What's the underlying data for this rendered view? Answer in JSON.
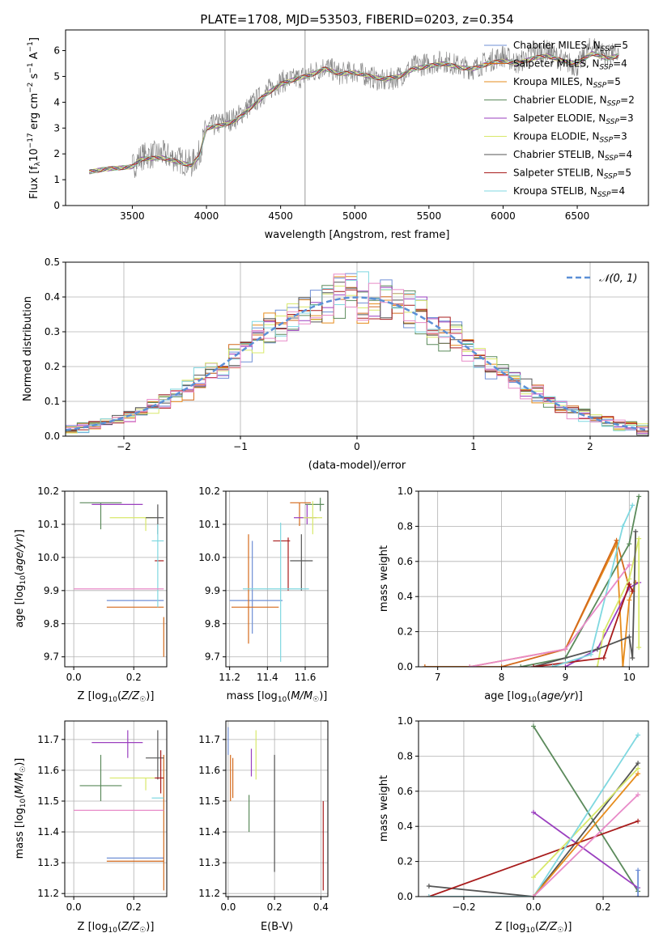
{
  "figure": {
    "title": "PLATE=1708, MJD=53503, FIBERID=0203, z=0.354"
  },
  "models": [
    {
      "name": "Chabrier MILES",
      "nssp": "5",
      "color": "#6f8fd6"
    },
    {
      "name": "Salpeter MILES",
      "nssp": "4",
      "color": "#d46a1c"
    },
    {
      "name": "Kroupa MILES",
      "nssp": "5",
      "color": "#e68c1c"
    },
    {
      "name": "Chabrier ELODIE",
      "nssp": "2",
      "color": "#5b8a5b"
    },
    {
      "name": "Salpeter ELODIE",
      "nssp": "3",
      "color": "#9a3fbf"
    },
    {
      "name": "Kroupa ELODIE",
      "nssp": "3",
      "color": "#d8e86a"
    },
    {
      "name": "Chabrier STELIB",
      "nssp": "4",
      "color": "#555555"
    },
    {
      "name": "Salpeter STELIB",
      "nssp": "5",
      "color": "#a81c1c"
    },
    {
      "name": "Kroupa STELIB",
      "nssp": "4",
      "color": "#7fd8e0"
    }
  ],
  "chart_data": [
    {
      "id": "spectrum",
      "type": "line",
      "xlabel": "wavelength [Angstrom, rest frame]",
      "ylabel": "Flux [f_λ 10^-17 erg cm^-2 s^-1 A^-1]",
      "xlim": [
        3050,
        6980
      ],
      "ylim": [
        0,
        6.8
      ],
      "xticks": [
        3500,
        4000,
        4500,
        5000,
        5500,
        6000,
        6500
      ],
      "yticks": [
        0,
        1,
        2,
        3,
        4,
        5,
        6
      ],
      "legend_position": "upper-right",
      "observed": {
        "x": [
          3210,
          3300,
          3400,
          3500,
          3560,
          3700,
          3800,
          3900,
          3950,
          4000,
          4100,
          4200,
          4300,
          4400,
          4500,
          4600,
          4700,
          4800,
          4900,
          5000,
          5100,
          5200,
          5300,
          5400,
          5500,
          5600,
          5700,
          5800,
          5900,
          6000,
          6100,
          6200,
          6300,
          6400,
          6500,
          6600,
          6700,
          6780
        ],
        "y": [
          1.3,
          1.4,
          1.45,
          1.5,
          1.9,
          2.0,
          1.8,
          1.6,
          2.0,
          3.0,
          3.2,
          3.4,
          3.9,
          4.4,
          4.8,
          4.9,
          5.1,
          5.4,
          5.1,
          5.2,
          5.0,
          4.8,
          5.0,
          5.4,
          5.5,
          5.6,
          5.4,
          5.3,
          5.6,
          5.8,
          5.5,
          5.9,
          6.0,
          5.6,
          5.4,
          6.2,
          5.8,
          5.9
        ]
      },
      "model": {
        "x": [
          3210,
          3300,
          3400,
          3500,
          3560,
          3700,
          3800,
          3900,
          3950,
          4000,
          4100,
          4200,
          4300,
          4400,
          4500,
          4600,
          4700,
          4800,
          4900,
          5000,
          5100,
          5200,
          5300,
          5400,
          5500,
          5600,
          5700,
          5800,
          5900,
          6000,
          6100,
          6200,
          6300,
          6400,
          6500,
          6600,
          6700,
          6780
        ],
        "y": [
          1.3,
          1.4,
          1.45,
          1.5,
          1.8,
          1.85,
          1.7,
          1.55,
          1.9,
          3.0,
          3.1,
          3.3,
          3.8,
          4.3,
          4.7,
          4.9,
          5.05,
          5.3,
          5.1,
          5.15,
          5.0,
          4.9,
          5.0,
          5.3,
          5.4,
          5.5,
          5.35,
          5.3,
          5.5,
          5.6,
          5.5,
          5.7,
          5.8,
          5.6,
          5.5,
          5.9,
          5.7,
          5.8
        ]
      }
    },
    {
      "id": "residuals",
      "type": "step",
      "xlabel": "(data-model)/error",
      "ylabel": "Normed distribution",
      "xlim": [
        -2.5,
        2.5
      ],
      "ylim": [
        0,
        0.5
      ],
      "xticks": [
        -2,
        -1,
        0,
        1,
        2
      ],
      "yticks": [
        0.0,
        0.1,
        0.2,
        0.3,
        0.4,
        0.5
      ],
      "legend": "𝒩(0, 1)",
      "reference_curve": "normal(0,1)",
      "bin_width": 0.1
    },
    {
      "id": "age-vs-Z",
      "type": "errorbar",
      "xlabel": "Z [log10(Z/Z☉)]",
      "ylabel": "age  [log10(age/yr)]",
      "xlim": [
        -0.03,
        0.31
      ],
      "ylim": [
        9.67,
        10.2
      ],
      "xticks": [
        0.0,
        0.2
      ],
      "yticks": [
        9.7,
        9.8,
        9.9,
        10.0,
        10.1,
        10.2
      ],
      "points": [
        {
          "x": 0.2,
          "xerr": [
            0.09,
            0.1
          ],
          "y": 9.87,
          "yerr": [
            0.0,
            0.0
          ]
        },
        {
          "x": 0.2,
          "xerr": [
            0.09,
            0.1
          ],
          "y": 9.85,
          "yerr": [
            0.0,
            0.0
          ]
        },
        {
          "x": 0.3,
          "xerr": [
            0.0,
            0.0
          ],
          "y": 9.8,
          "yerr": [
            0.1,
            0.02
          ]
        },
        {
          "x": 0.09,
          "xerr": [
            0.07,
            0.07
          ],
          "y": 10.165,
          "yerr": [
            0.08,
            0.0
          ]
        },
        {
          "x": 0.18,
          "xerr": [
            0.12,
            0.05
          ],
          "y": 10.16,
          "yerr": [
            0.0,
            0.0
          ]
        },
        {
          "x": 0.24,
          "xerr": [
            0.12,
            0.03
          ],
          "y": 10.12,
          "yerr": [
            0.04,
            0.0
          ]
        },
        {
          "x": 0.28,
          "xerr": [
            0.04,
            0.02
          ],
          "y": 10.12,
          "yerr": [
            0.05,
            0.04
          ]
        },
        {
          "x": 0.29,
          "xerr": [
            0.02,
            0.01
          ],
          "y": 9.99,
          "yerr": [
            0.0,
            0.0
          ]
        },
        {
          "x": 0.28,
          "xerr": [
            0.02,
            0.02
          ],
          "y": 10.05,
          "yerr": [
            0.2,
            0.05
          ]
        },
        {
          "x": 0.15,
          "xerr": [
            0.15,
            0.15
          ],
          "y": 9.905,
          "yerr": [
            0.0,
            0.0
          ]
        }
      ]
    },
    {
      "id": "age-vs-mass",
      "type": "errorbar",
      "xlabel": "mass [log10(M/M☉)]",
      "ylabel": "",
      "xlim": [
        11.18,
        11.72
      ],
      "ylim": [
        9.67,
        10.2
      ],
      "xticks": [
        11.2,
        11.4,
        11.6
      ],
      "yticks": [
        9.7,
        9.8,
        9.9,
        10.0,
        10.1,
        10.2
      ],
      "points": [
        {
          "x": 11.32,
          "xerr": [
            0.12,
            0.16
          ],
          "y": 9.87,
          "yerr": [
            0.1,
            0.18
          ]
        },
        {
          "x": 11.3,
          "xerr": [
            0.09,
            0.16
          ],
          "y": 9.85,
          "yerr": [
            0.11,
            0.22
          ]
        },
        {
          "x": 11.57,
          "xerr": [
            0.05,
            0.06
          ],
          "y": 10.165,
          "yerr": [
            0.07,
            0.0
          ]
        },
        {
          "x": 11.68,
          "xerr": [
            0.08,
            0.02
          ],
          "y": 10.16,
          "yerr": [
            0.02,
            0.02
          ]
        },
        {
          "x": 11.61,
          "xerr": [
            0.07,
            0.05
          ],
          "y": 10.12,
          "yerr": [
            0.02,
            0.04
          ]
        },
        {
          "x": 11.64,
          "xerr": [
            0.05,
            0.05
          ],
          "y": 10.12,
          "yerr": [
            0.05,
            0.05
          ]
        },
        {
          "x": 11.58,
          "xerr": [
            0.06,
            0.06
          ],
          "y": 9.99,
          "yerr": [
            0.09,
            0.08
          ]
        },
        {
          "x": 11.51,
          "xerr": [
            0.08,
            0.01
          ],
          "y": 10.05,
          "yerr": [
            0.15,
            0.01
          ]
        },
        {
          "x": 11.47,
          "xerr": [
            0.2,
            0.15
          ],
          "y": 9.905,
          "yerr": [
            0.22,
            0.2
          ]
        }
      ]
    },
    {
      "id": "weight-vs-age",
      "type": "line",
      "xlabel": "age  [log10(age/yr)]",
      "ylabel": "mass weight",
      "xlim": [
        6.7,
        10.3
      ],
      "ylim": [
        0,
        1
      ],
      "xticks": [
        7,
        8,
        9,
        10
      ],
      "yticks": [
        0.0,
        0.2,
        0.4,
        0.6,
        0.8,
        1.0
      ]
    },
    {
      "id": "mass-vs-Z",
      "type": "errorbar",
      "xlabel": "Z [log10(Z/Z☉)]",
      "ylabel": "mass [log10(M/M☉)]",
      "xlim": [
        -0.03,
        0.31
      ],
      "ylim": [
        11.19,
        11.76
      ],
      "xticks": [
        0.0,
        0.2
      ],
      "yticks": [
        11.2,
        11.3,
        11.4,
        11.5,
        11.6,
        11.7
      ],
      "points": [
        {
          "x": 0.2,
          "xerr": [
            0.09,
            0.1
          ],
          "y": 11.315,
          "yerr": [
            0.0,
            0.0
          ]
        },
        {
          "x": 0.2,
          "xerr": [
            0.09,
            0.1
          ],
          "y": 11.305,
          "yerr": [
            0.0,
            0.0
          ]
        },
        {
          "x": 0.3,
          "xerr": [
            0.0,
            0.0
          ],
          "y": 11.4,
          "yerr": [
            0.19,
            0.25
          ]
        },
        {
          "x": 0.09,
          "xerr": [
            0.07,
            0.07
          ],
          "y": 11.55,
          "yerr": [
            0.05,
            0.1
          ]
        },
        {
          "x": 0.18,
          "xerr": [
            0.12,
            0.05
          ],
          "y": 11.69,
          "yerr": [
            0.05,
            0.04
          ]
        },
        {
          "x": 0.24,
          "xerr": [
            0.12,
            0.03
          ],
          "y": 11.575,
          "yerr": [
            0.04,
            0.0
          ]
        },
        {
          "x": 0.28,
          "xerr": [
            0.04,
            0.02
          ],
          "y": 11.64,
          "yerr": [
            0.07,
            0.09
          ]
        },
        {
          "x": 0.29,
          "xerr": [
            0.02,
            0.01
          ],
          "y": 11.575,
          "yerr": [
            0.05,
            0.09
          ]
        },
        {
          "x": 0.28,
          "xerr": [
            0.02,
            0.02
          ],
          "y": 11.51,
          "yerr": [
            0.0,
            0.0
          ]
        },
        {
          "x": 0.15,
          "xerr": [
            0.15,
            0.15
          ],
          "y": 11.47,
          "yerr": [
            0.0,
            0.0
          ]
        }
      ]
    },
    {
      "id": "mass-vs-ebv",
      "type": "errorbar",
      "xlabel": "E(B-V)",
      "ylabel": "",
      "xlim": [
        -0.01,
        0.43
      ],
      "ylim": [
        11.19,
        11.76
      ],
      "xticks": [
        0.0,
        0.2,
        0.4
      ],
      "yticks": [
        11.2,
        11.3,
        11.4,
        11.5,
        11.6,
        11.7
      ],
      "points": [
        {
          "x": 0.0,
          "y": 11.7,
          "yerr": [
            0.05,
            0.04
          ]
        },
        {
          "x": 0.01,
          "y": 11.58,
          "yerr": [
            0.08,
            0.07
          ]
        },
        {
          "x": 0.02,
          "y": 11.58,
          "yerr": [
            0.07,
            0.06
          ]
        },
        {
          "x": 0.09,
          "y": 11.45,
          "yerr": [
            0.05,
            0.07
          ]
        },
        {
          "x": 0.1,
          "y": 11.62,
          "yerr": [
            0.04,
            0.05
          ]
        },
        {
          "x": 0.12,
          "y": 11.65,
          "yerr": [
            0.08,
            0.08
          ]
        },
        {
          "x": 0.2,
          "y": 11.45,
          "yerr": [
            0.18,
            0.2
          ]
        },
        {
          "x": 0.41,
          "y": 11.35,
          "yerr": [
            0.14,
            0.15
          ]
        }
      ]
    },
    {
      "id": "weight-vs-Z",
      "type": "line",
      "xlabel": "Z [log10(Z/Z☉)]",
      "ylabel": "mass weight",
      "xlim": [
        -0.33,
        0.33
      ],
      "ylim": [
        0,
        1
      ],
      "xticks": [
        -0.2,
        0.0,
        0.2
      ],
      "yticks": [
        0.0,
        0.2,
        0.4,
        0.6,
        0.8,
        1.0
      ]
    }
  ]
}
